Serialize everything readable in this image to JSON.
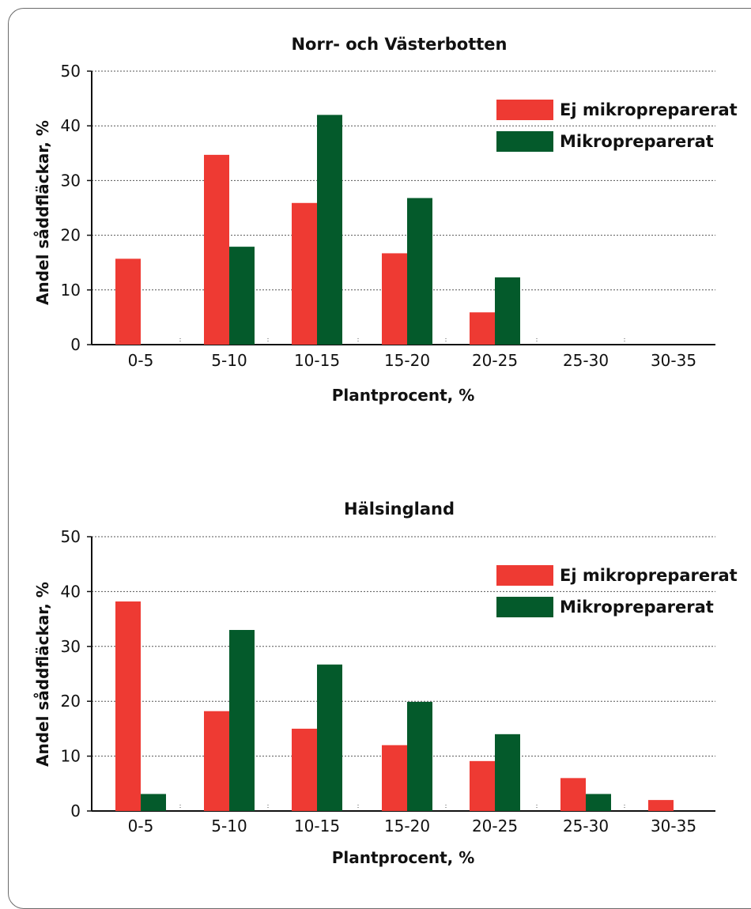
{
  "colors": {
    "ej": "#ee3a33",
    "mikro": "#045a2b",
    "grid": "#555555",
    "axis": "#111111"
  },
  "chart_data": [
    {
      "type": "bar",
      "title": "Norr- och Västerbotten",
      "xlabel": "Plantprocent, %",
      "ylabel": "Andel sådd­fläckar, %",
      "categories": [
        "0-5",
        "5-10",
        "10-15",
        "15-20",
        "20-25",
        "25-30",
        "30-35"
      ],
      "ylim": [
        0,
        50
      ],
      "yticks": [
        0,
        10,
        20,
        30,
        40,
        50
      ],
      "grid": true,
      "legend_position": "top-right",
      "series": [
        {
          "name": "Ej mikropreparerat",
          "color": "#ee3a33",
          "values": [
            15.7,
            34.7,
            25.9,
            16.7,
            5.9,
            0,
            0
          ]
        },
        {
          "name": "Mikropreparerat",
          "color": "#045a2b",
          "values": [
            0,
            17.9,
            42,
            26.8,
            12.3,
            0,
            0
          ]
        }
      ]
    },
    {
      "type": "bar",
      "title": "Hälsingland",
      "xlabel": "Plantprocent, %",
      "ylabel": "Andel sådd­fläckar, %",
      "categories": [
        "0-5",
        "5-10",
        "10-15",
        "15-20",
        "20-25",
        "25-30",
        "30-35"
      ],
      "ylim": [
        0,
        50
      ],
      "yticks": [
        0,
        10,
        20,
        30,
        40,
        50
      ],
      "grid": true,
      "legend_position": "top-right",
      "series": [
        {
          "name": "Ej mikropreparerat",
          "color": "#ee3a33",
          "values": [
            38.2,
            18.2,
            15,
            12,
            9.1,
            6,
            2
          ]
        },
        {
          "name": "Mikropreparerat",
          "color": "#045a2b",
          "values": [
            3.1,
            33,
            26.7,
            19.9,
            14,
            3.1,
            0
          ]
        }
      ]
    }
  ]
}
